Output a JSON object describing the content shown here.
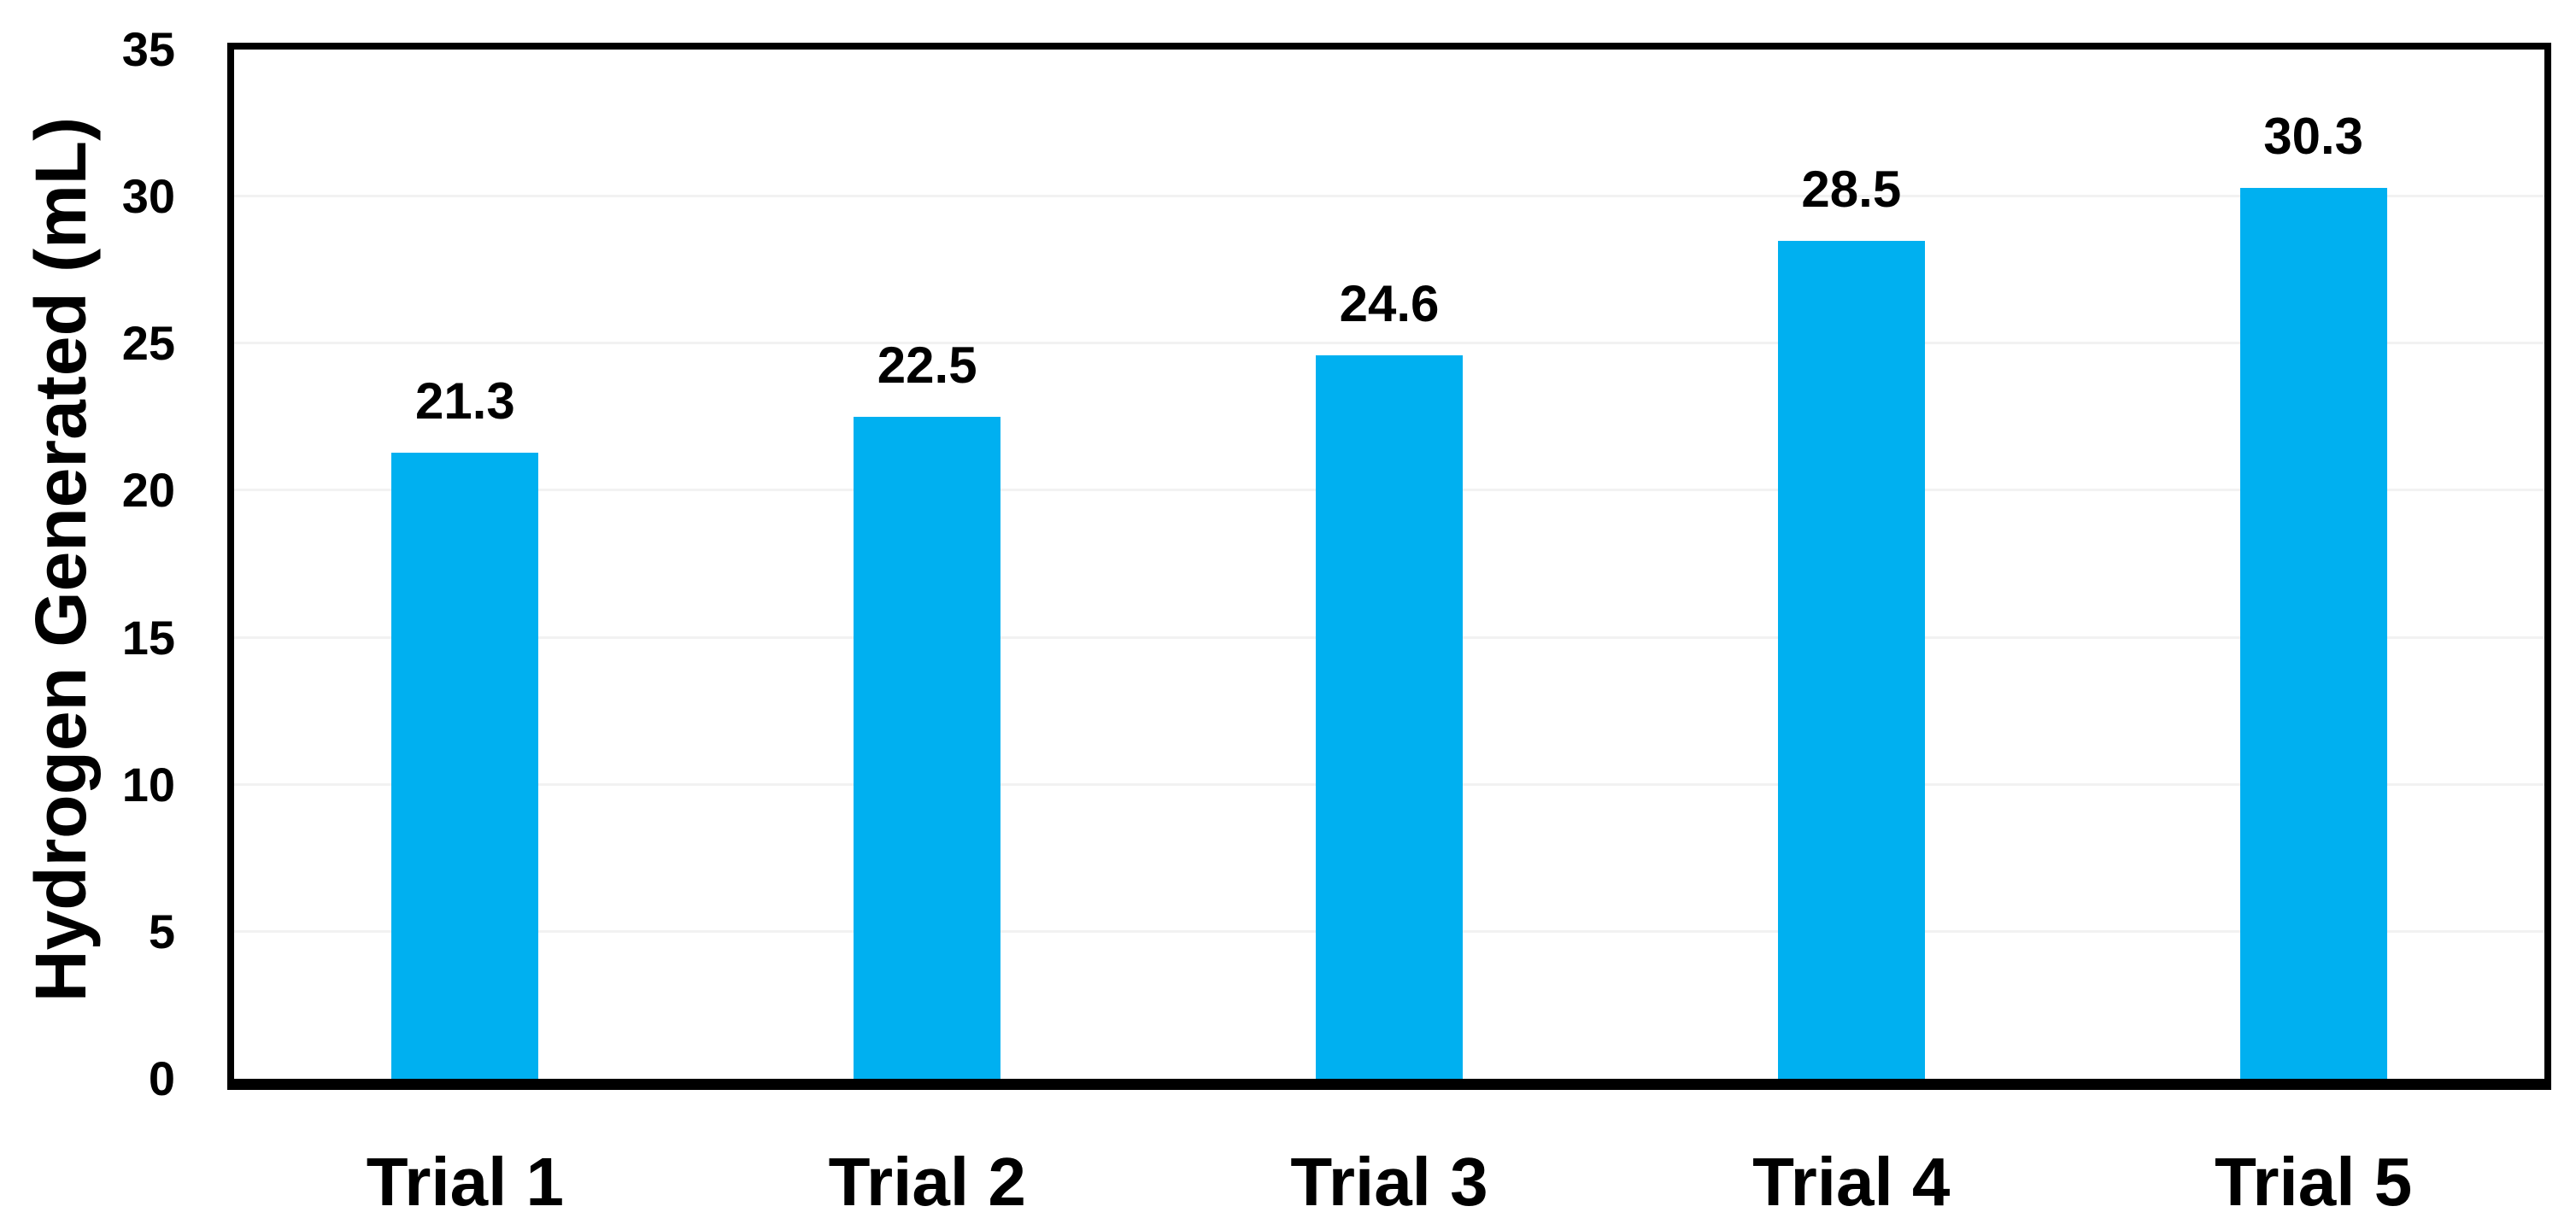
{
  "chart_data": {
    "type": "bar",
    "title": "",
    "xlabel": "",
    "ylabel": "Hydrogen Generated (mL)",
    "categories": [
      "Trial 1",
      "Trial 2",
      "Trial 3",
      "Trial 4",
      "Trial 5"
    ],
    "values": [
      21.3,
      22.5,
      24.6,
      28.5,
      30.3
    ],
    "value_labels": [
      "21.3",
      "22.5",
      "24.6",
      "28.5",
      "30.3"
    ],
    "ylim": [
      0,
      35
    ],
    "yticks": [
      0,
      5,
      10,
      15,
      20,
      25,
      30,
      35
    ],
    "grid": "horizontal gridlines every 5 mL, very light gray",
    "legend_position": "none",
    "colors": {
      "bar_fill": "#00B0F0",
      "gridline": "#F2F2F2",
      "axis_frame": "#000000",
      "text": "#000000",
      "background": "#FFFFFF"
    }
  }
}
